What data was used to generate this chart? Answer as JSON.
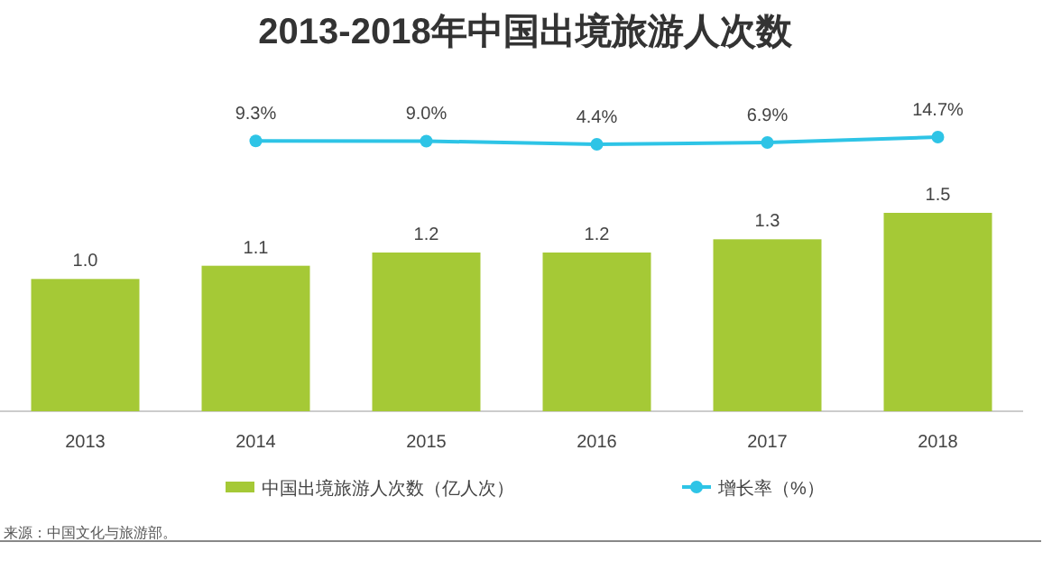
{
  "chart_data": [
    {
      "type": "line",
      "title": "2013-2018年中国出境旅游人次数",
      "categories": [
        null,
        null,
        null,
        null,
        null,
        null
      ],
      "series": [
        {
          "name": "增长率（%）",
          "color": "#2ec4e6",
          "values": [
            null,
            9.3,
            9.0,
            4.4,
            6.9,
            14.7
          ],
          "value_labels": [
            null,
            "9.3%",
            "9.0%",
            "4.4%",
            "6.9%",
            "14.7%"
          ]
        }
      ],
      "marker": "circle",
      "legend": "bottom"
    },
    {
      "type": "bar",
      "categories": [
        "2013",
        "2014",
        "2015",
        "2016",
        "2017",
        "2018"
      ],
      "series": [
        {
          "name": "中国出境旅游人次数（亿人次）",
          "color": "#a5c936",
          "values": [
            1.0,
            1.1,
            1.2,
            1.2,
            1.3,
            1.5
          ],
          "value_labels": [
            "1.0",
            "1.1",
            "1.2",
            "1.2",
            "1.3",
            "1.5"
          ]
        }
      ],
      "legend": "bottom",
      "grid": false,
      "annotations": [
        "来源：中国文化与旅游部。"
      ]
    }
  ]
}
